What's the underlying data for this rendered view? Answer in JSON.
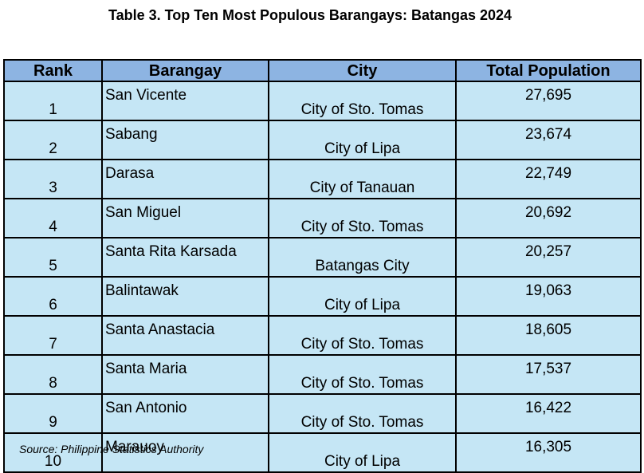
{
  "title": "Table 3. Top Ten Most Populous Barangays: Batangas 2024",
  "table": {
    "headers": {
      "rank": "Rank",
      "barangay": "Barangay",
      "city": "City",
      "population": "Total Population"
    },
    "rows": [
      {
        "rank": "1",
        "barangay": "San Vicente",
        "city": "City of Sto. Tomas",
        "population": "27,695"
      },
      {
        "rank": "2",
        "barangay": "Sabang",
        "city": "City of Lipa",
        "population": "23,674"
      },
      {
        "rank": "3",
        "barangay": "Darasa",
        "city": "City of Tanauan",
        "population": "22,749"
      },
      {
        "rank": "4",
        "barangay": "San Miguel",
        "city": "City of Sto. Tomas",
        "population": "20,692"
      },
      {
        "rank": "5",
        "barangay": "Santa Rita Karsada",
        "city": "Batangas City",
        "population": "20,257"
      },
      {
        "rank": "6",
        "barangay": "Balintawak",
        "city": "City of Lipa",
        "population": "19,063"
      },
      {
        "rank": "7",
        "barangay": "Santa Anastacia",
        "city": "City of Sto. Tomas",
        "population": "18,605"
      },
      {
        "rank": "8",
        "barangay": "Santa Maria",
        "city": "City of Sto. Tomas",
        "population": "17,537"
      },
      {
        "rank": "9",
        "barangay": "San Antonio",
        "city": "City of Sto. Tomas",
        "population": "16,422"
      },
      {
        "rank": "10",
        "barangay": "Marauoy",
        "city": "City of Lipa",
        "population": "16,305"
      }
    ]
  },
  "source": "Source: Philippine Statistics Authority",
  "colors": {
    "header_bg": "#8db4e2",
    "cell_bg": "#c5e6f5",
    "border": "#000000"
  }
}
